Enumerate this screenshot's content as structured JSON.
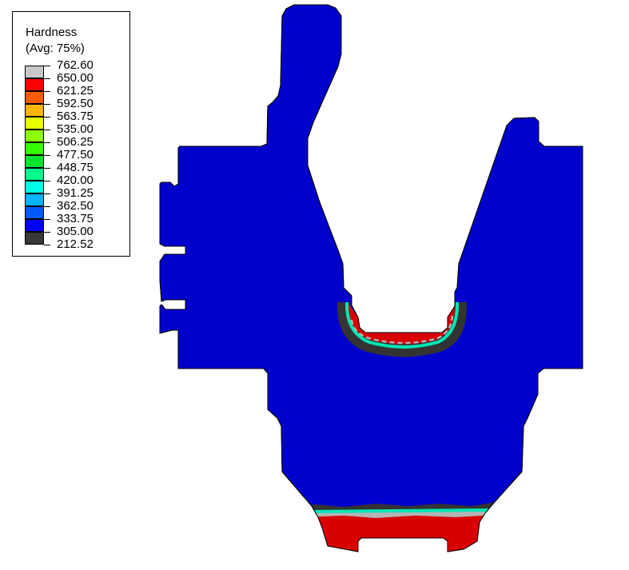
{
  "legend": {
    "title": "Hardness",
    "subtitle": "(Avg: 75%)",
    "levels": [
      "762.60",
      "650.00",
      "621.25",
      "592.50",
      "563.75",
      "535.00",
      "506.25",
      "477.50",
      "448.75",
      "420.00",
      "391.25",
      "362.50",
      "333.75",
      "305.00",
      "212.52"
    ],
    "colors": [
      "#c8c8c8",
      "#ff0000",
      "#ff5a00",
      "#ffb400",
      "#e6ff00",
      "#8cff00",
      "#33ff00",
      "#00e62e",
      "#00ff8c",
      "#00ffe6",
      "#00b4ff",
      "#005aff",
      "#0000ff",
      "#383838"
    ]
  },
  "contour_colors": {
    "body": "#0000cd",
    "hard_zone": "#d90000",
    "transition": "#b4b4b4",
    "soft_band": "#333333",
    "gradient": "#00e6b4"
  }
}
